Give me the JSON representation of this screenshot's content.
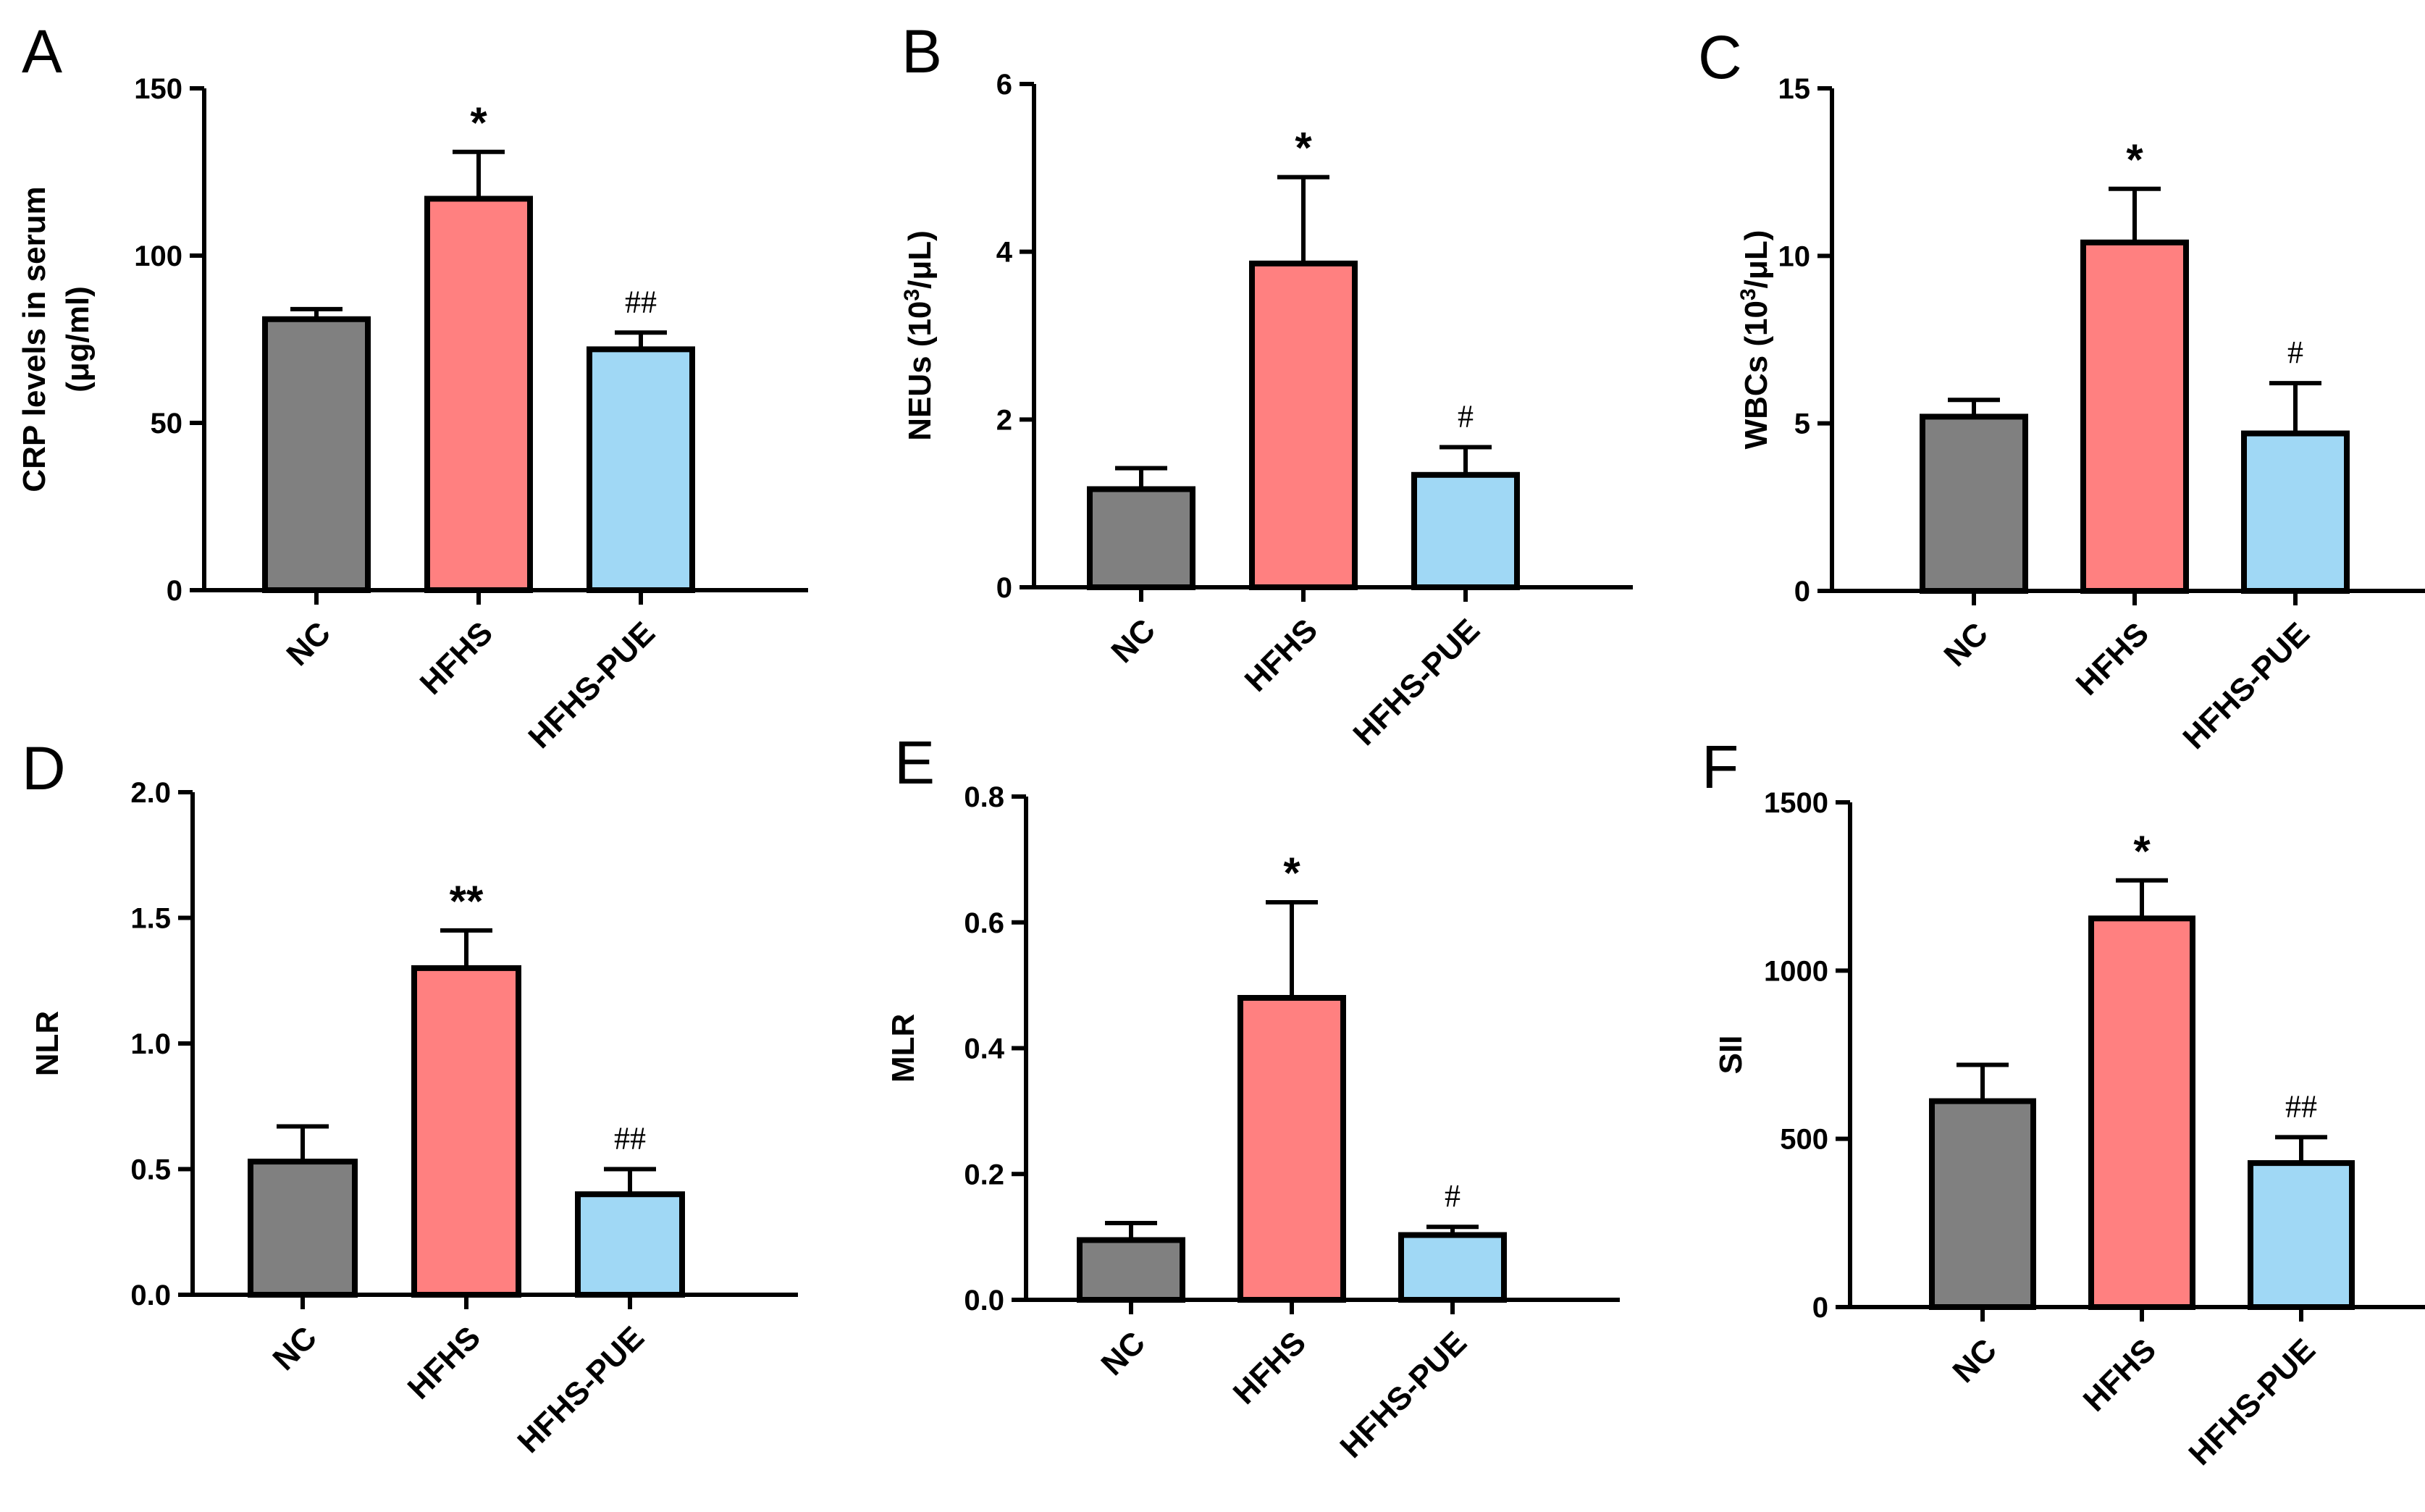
{
  "colors": {
    "NC": "#808080",
    "HFHS": "#FF8080",
    "HFHS-PUE": "#A0D8F5"
  },
  "chart_data": [
    {
      "type": "bar",
      "panel": "A",
      "categories": [
        "NC",
        "HFHS",
        "HFHS-PUE"
      ],
      "values": [
        81,
        117,
        72
      ],
      "errors": [
        3,
        14,
        5
      ],
      "significance": [
        "",
        "*",
        "##"
      ],
      "ylabel": [
        "CRP levels in serum",
        "(μg/ml)"
      ],
      "ylim": [
        0,
        150
      ],
      "yticks": [
        "0",
        "50",
        "100",
        "150"
      ]
    },
    {
      "type": "bar",
      "panel": "B",
      "categories": [
        "NC",
        "HFHS",
        "HFHS-PUE"
      ],
      "values": [
        1.17,
        3.86,
        1.34
      ],
      "errors": [
        0.25,
        1.03,
        0.33
      ],
      "significance": [
        "",
        "*",
        "#"
      ],
      "ylabel": [
        "NEUs (10³/μL)"
      ],
      "ylim": [
        0,
        6
      ],
      "yticks": [
        "0",
        "2",
        "4",
        "6"
      ]
    },
    {
      "type": "bar",
      "panel": "C",
      "categories": [
        "NC",
        "HFHS",
        "HFHS-PUE"
      ],
      "values": [
        5.2,
        10.4,
        4.7
      ],
      "errors": [
        0.5,
        1.6,
        1.5
      ],
      "significance": [
        "",
        "*",
        "#"
      ],
      "ylabel": [
        "WBCs (10³/μL)"
      ],
      "ylim": [
        0,
        15
      ],
      "yticks": [
        "0",
        "5",
        "10",
        "15"
      ]
    },
    {
      "type": "bar",
      "panel": "D",
      "categories": [
        "NC",
        "HFHS",
        "HFHS-PUE"
      ],
      "values": [
        0.53,
        1.3,
        0.4
      ],
      "errors": [
        0.14,
        0.15,
        0.1
      ],
      "significance": [
        "",
        "**",
        "##"
      ],
      "ylabel": [
        "NLR"
      ],
      "ylim": [
        0,
        2.0
      ],
      "yticks": [
        "0.0",
        "0.5",
        "1.0",
        "1.5",
        "2.0"
      ]
    },
    {
      "type": "bar",
      "panel": "E",
      "categories": [
        "NC",
        "HFHS",
        "HFHS-PUE"
      ],
      "values": [
        0.095,
        0.48,
        0.103
      ],
      "errors": [
        0.027,
        0.152,
        0.013
      ],
      "significance": [
        "",
        "*",
        "#"
      ],
      "ylabel": [
        "MLR"
      ],
      "ylim": [
        0,
        0.8
      ],
      "yticks": [
        "0.0",
        "0.2",
        "0.4",
        "0.6",
        "0.8"
      ]
    },
    {
      "type": "bar",
      "panel": "F",
      "categories": [
        "NC",
        "HFHS",
        "HFHS-PUE"
      ],
      "values": [
        612,
        1155,
        428
      ],
      "errors": [
        108,
        113,
        77
      ],
      "significance": [
        "",
        "*",
        "##"
      ],
      "ylabel": [
        "SII"
      ],
      "ylim": [
        0,
        1500
      ],
      "yticks": [
        "0",
        "500",
        "1000",
        "1500"
      ]
    }
  ]
}
